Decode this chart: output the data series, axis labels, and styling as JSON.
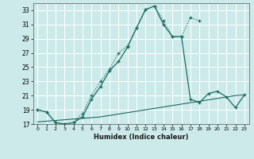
{
  "xlabel": "Humidex (Indice chaleur)",
  "background_color": "#cdeaea",
  "grid_color": "#b8d8d8",
  "line_color": "#1a6b5e",
  "x_values": [
    0,
    1,
    2,
    3,
    4,
    5,
    6,
    7,
    8,
    9,
    10,
    11,
    12,
    13,
    14,
    15,
    16,
    17,
    18,
    19,
    20,
    21,
    22,
    23
  ],
  "line1_y": [
    19.0,
    18.7,
    17.2,
    17.0,
    17.2,
    18.5,
    21.0,
    23.0,
    24.7,
    27.0,
    28.0,
    30.5,
    33.1,
    33.6,
    31.5,
    29.3,
    29.3,
    32.0,
    31.5,
    null,
    null,
    null,
    null,
    null
  ],
  "line2_y": [
    19.0,
    18.7,
    17.2,
    17.0,
    17.2,
    18.0,
    20.5,
    22.3,
    24.5,
    25.8,
    27.8,
    30.5,
    33.1,
    33.6,
    31.0,
    29.3,
    29.3,
    20.5,
    20.0,
    21.3,
    21.6,
    20.8,
    19.3,
    21.1
  ],
  "line3_y": [
    17.3,
    17.4,
    17.5,
    17.6,
    17.7,
    17.8,
    17.9,
    18.0,
    18.2,
    18.4,
    18.6,
    18.8,
    19.0,
    19.2,
    19.4,
    19.6,
    19.8,
    20.0,
    20.2,
    20.4,
    20.6,
    20.8,
    21.0,
    21.1
  ],
  "ylim": [
    17,
    34
  ],
  "xlim": [
    -0.5,
    23.5
  ],
  "yticks": [
    17,
    19,
    21,
    23,
    25,
    27,
    29,
    31,
    33
  ],
  "xtick_labels": [
    "0",
    "1",
    "2",
    "3",
    "4",
    "5",
    "6",
    "7",
    "8",
    "9",
    "10",
    "11",
    "12",
    "13",
    "14",
    "15",
    "16",
    "17",
    "18",
    "19",
    "20",
    "21",
    "22",
    "23"
  ]
}
